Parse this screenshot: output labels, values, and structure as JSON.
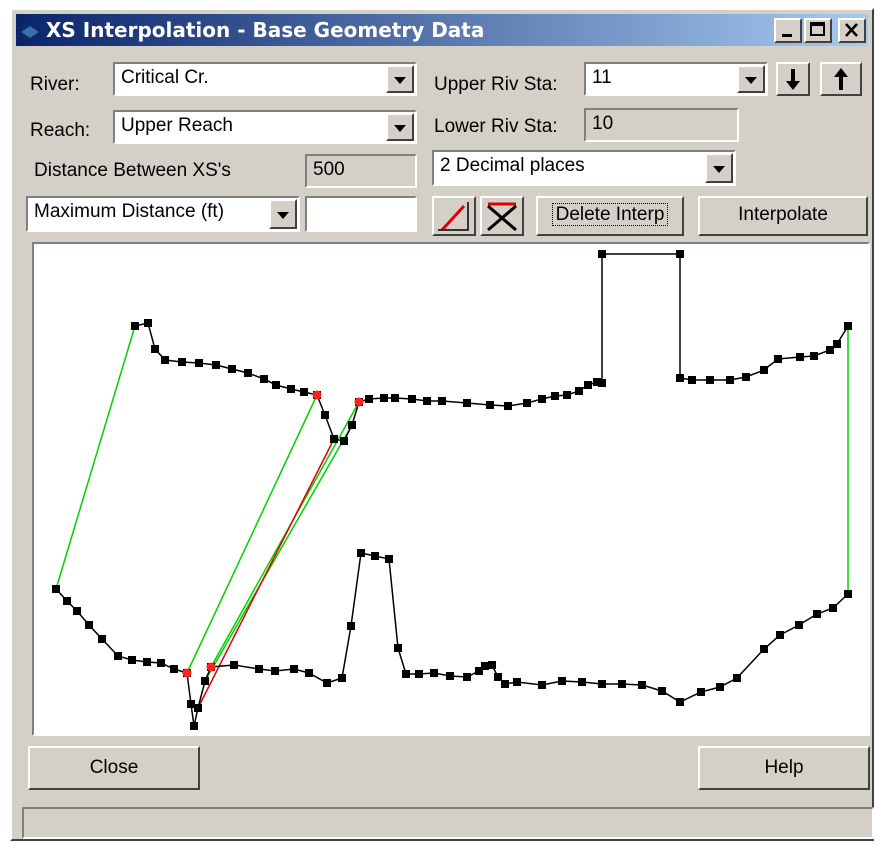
{
  "window": {
    "title": "XS Interpolation  - Base Geometry Data"
  },
  "form": {
    "river_label": "River:",
    "river": "Critical Cr.",
    "reach_label": "Reach:",
    "reach": "Upper Reach",
    "distance_label": "Distance Between XS's",
    "distance": 500,
    "upper_label": "Upper Riv Sta:",
    "upper": 11,
    "lower_label": "Lower Riv Sta:",
    "lower": 10,
    "decimals": "2 Decimal places",
    "method": "Maximum Distance (ft)"
  },
  "buttons": {
    "delete": "Delete Interp",
    "interpolate": "Interpolate",
    "close": "Close",
    "help": "Help"
  }
}
